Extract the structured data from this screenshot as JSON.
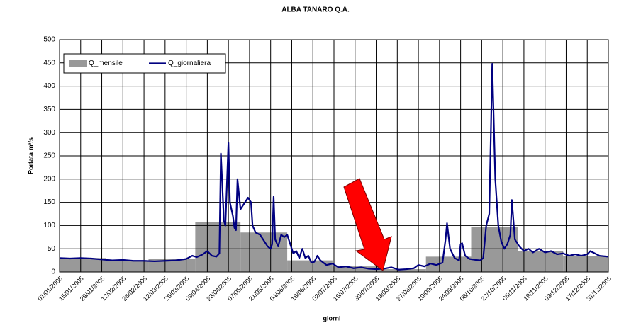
{
  "chart_data": {
    "type": "area_line",
    "title": "ALBA TANARO Q.A.",
    "y_label": "Portata m³/s",
    "x_label": "giorni",
    "xlim": [
      0,
      364
    ],
    "xticks": [
      {
        "value": 0,
        "label": "01/01/2005"
      },
      {
        "value": 14,
        "label": "15/01/2005"
      },
      {
        "value": 28,
        "label": "29/01/2005"
      },
      {
        "value": 42,
        "label": "12/02/2005"
      },
      {
        "value": 56,
        "label": "26/02/2005"
      },
      {
        "value": 70,
        "label": "12/03/2005"
      },
      {
        "value": 84,
        "label": "26/03/2005"
      },
      {
        "value": 98,
        "label": "09/04/2005"
      },
      {
        "value": 112,
        "label": "23/04/2005"
      },
      {
        "value": 126,
        "label": "07/05/2005"
      },
      {
        "value": 140,
        "label": "21/05/2005"
      },
      {
        "value": 154,
        "label": "04/06/2005"
      },
      {
        "value": 168,
        "label": "18/06/2005"
      },
      {
        "value": 182,
        "label": "02/07/2005"
      },
      {
        "value": 196,
        "label": "16/07/2005"
      },
      {
        "value": 210,
        "label": "30/07/2005"
      },
      {
        "value": 224,
        "label": "13/08/2005"
      },
      {
        "value": 238,
        "label": "27/08/2005"
      },
      {
        "value": 252,
        "label": "10/09/2005"
      },
      {
        "value": 266,
        "label": "24/09/2005"
      },
      {
        "value": 280,
        "label": "08/10/2005"
      },
      {
        "value": 294,
        "label": "22/10/2005"
      },
      {
        "value": 308,
        "label": "05/11/2005"
      },
      {
        "value": 322,
        "label": "19/11/2005"
      },
      {
        "value": 336,
        "label": "03/12/2005"
      },
      {
        "value": 350,
        "label": "17/12/2005"
      },
      {
        "value": 364,
        "label": "31/12/2005"
      }
    ],
    "ylim": [
      0,
      500
    ],
    "yticks": [
      0,
      50,
      100,
      150,
      200,
      250,
      300,
      350,
      400,
      450,
      500
    ],
    "grid": true,
    "legend": "top-left",
    "series": [
      {
        "name": "Q_mensile",
        "color": "#999999",
        "kind": "area",
        "x": [
          0,
          31,
          59,
          90,
          120,
          151,
          181,
          212,
          243,
          273,
          304,
          334
        ],
        "values": [
          30,
          25,
          28,
          107,
          85,
          25,
          12,
          6,
          33,
          97,
          45,
          35
        ]
      },
      {
        "name": "Q_giornaliera",
        "color": "#000080",
        "kind": "line",
        "x": [
          0,
          7,
          14,
          21,
          28,
          35,
          42,
          49,
          56,
          63,
          70,
          77,
          84,
          88,
          91,
          95,
          98,
          101,
          104,
          106,
          107,
          109,
          110,
          112,
          113,
          115,
          116,
          117,
          118,
          120,
          123,
          125,
          127,
          128,
          130,
          133,
          135,
          138,
          140,
          141,
          142,
          143,
          145,
          147,
          149,
          151,
          153,
          155,
          157,
          159,
          161,
          163,
          165,
          167,
          169,
          171,
          173,
          177,
          181,
          185,
          190,
          195,
          200,
          205,
          210,
          215,
          220,
          225,
          230,
          235,
          238,
          242,
          246,
          250,
          254,
          256,
          257,
          259,
          262,
          265,
          266,
          267,
          269,
          272,
          276,
          279,
          281,
          283,
          285,
          287,
          289,
          291,
          293,
          295,
          297,
          299,
          300,
          302,
          305,
          308,
          311,
          314,
          318,
          322,
          326,
          330,
          334,
          338,
          342,
          346,
          350,
          352,
          355,
          358,
          364
        ],
        "values": [
          30,
          29,
          30,
          29,
          27,
          25,
          26,
          24,
          24,
          23,
          24,
          25,
          28,
          35,
          32,
          38,
          45,
          35,
          33,
          40,
          255,
          110,
          100,
          278,
          150,
          120,
          95,
          90,
          200,
          135,
          150,
          160,
          150,
          100,
          85,
          80,
          70,
          55,
          50,
          60,
          162,
          70,
          55,
          80,
          75,
          80,
          60,
          40,
          45,
          30,
          50,
          30,
          35,
          20,
          22,
          35,
          25,
          15,
          18,
          10,
          12,
          8,
          10,
          7,
          6,
          7,
          10,
          5,
          6,
          8,
          15,
          12,
          18,
          15,
          20,
          70,
          105,
          50,
          30,
          25,
          60,
          62,
          35,
          28,
          26,
          25,
          30,
          100,
          125,
          448,
          200,
          100,
          65,
          50,
          60,
          80,
          155,
          70,
          55,
          45,
          50,
          42,
          50,
          42,
          45,
          38,
          40,
          35,
          38,
          35,
          38,
          45,
          40,
          35,
          33
        ]
      }
    ]
  }
}
